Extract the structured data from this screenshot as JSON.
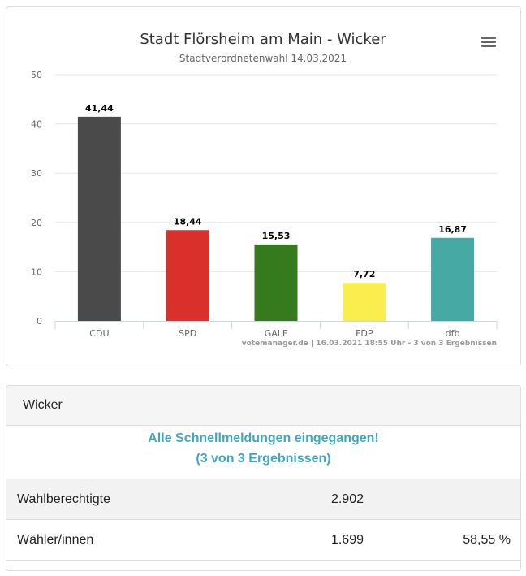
{
  "chart_data": {
    "type": "bar",
    "title": "Stadt Flörsheim am Main - Wicker",
    "subtitle": "Stadtverordnetenwahl 14.03.2021",
    "categories": [
      "CDU",
      "SPD",
      "GALF",
      "FDP",
      "dfb"
    ],
    "values": [
      41.44,
      18.44,
      15.53,
      7.72,
      16.87
    ],
    "value_labels": [
      "41,44",
      "18,44",
      "15,53",
      "7,72",
      "16,87"
    ],
    "colors": [
      "#4a4a4a",
      "#d9302c",
      "#357a1c",
      "#f9ee4d",
      "#47a9a3"
    ],
    "ylim": [
      0,
      50
    ],
    "yticks": [
      0,
      10,
      20,
      30,
      40,
      50
    ],
    "grid": true,
    "legend": "none",
    "credits": "votemanager.de | 16.03.2021 18:55 Uhr - 3 von 3 Ergebnissen"
  },
  "panel": {
    "title": "Wicker",
    "status_line1": "Alle Schnellmeldungen eingegangen!",
    "status_line2": "(3 von 3 Ergebnissen)",
    "rows": [
      {
        "label": "Wahlberechtigte",
        "value": "2.902",
        "percent": ""
      },
      {
        "label": "Wähler/innen",
        "value": "1.699",
        "percent": "58,55 %"
      }
    ]
  }
}
